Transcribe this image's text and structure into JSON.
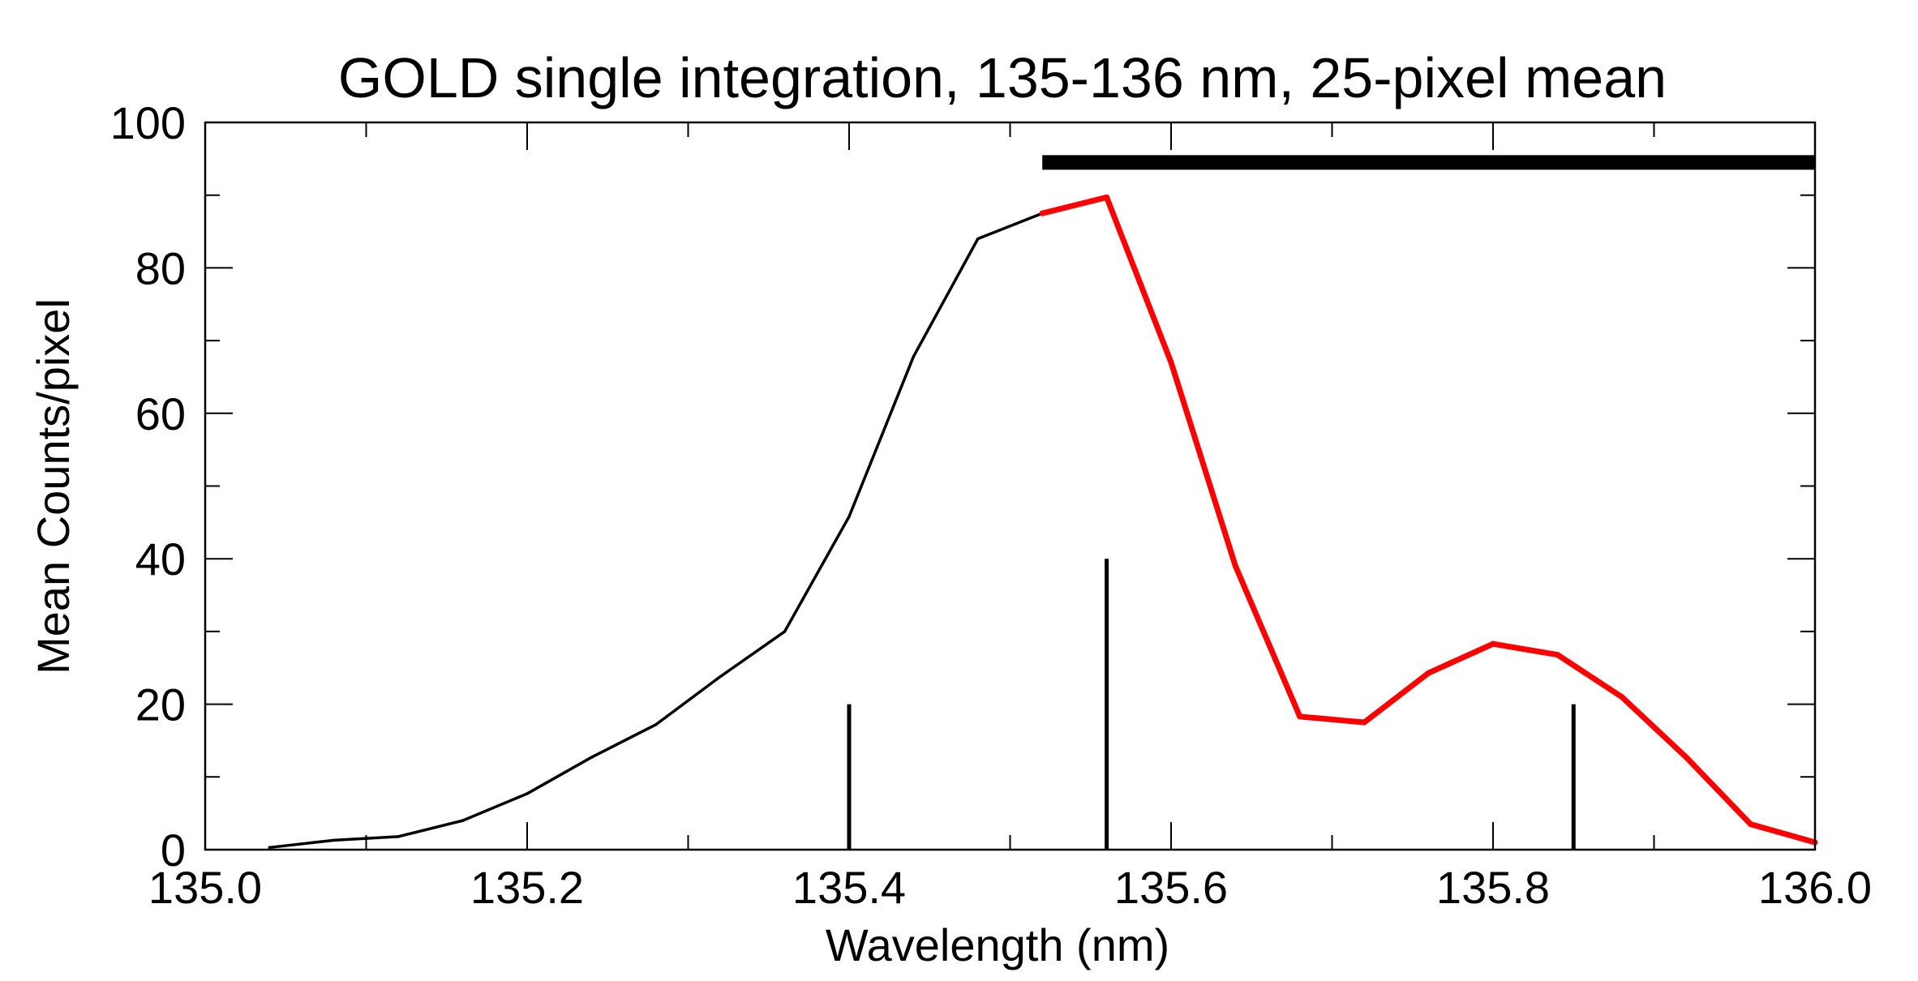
{
  "chart_data": {
    "type": "line",
    "title": "GOLD single integration, 135-136 nm, 25-pixel mean",
    "xlabel": "Wavelength (nm)",
    "ylabel": "Mean Counts/pixel",
    "xlim": [
      135.0,
      136.0
    ],
    "ylim": [
      0,
      100
    ],
    "x_ticks": [
      "135.0",
      "135.2",
      "135.4",
      "135.6",
      "135.8",
      "136.0"
    ],
    "x_tick_values": [
      135.0,
      135.2,
      135.4,
      135.6,
      135.8,
      136.0
    ],
    "y_ticks": [
      "0",
      "20",
      "40",
      "60",
      "80",
      "100"
    ],
    "y_tick_values": [
      0,
      20,
      40,
      60,
      80,
      100
    ],
    "x_minor_tick_values": [
      135.1,
      135.3,
      135.5,
      135.7,
      135.9
    ],
    "y_minor_tick_values": [
      10,
      30,
      50,
      70,
      90
    ],
    "grid": false,
    "series": [
      {
        "color": "#000000",
        "x": [
          135.04,
          135.08,
          135.12,
          135.16,
          135.2,
          135.24,
          135.28,
          135.32,
          135.36,
          135.4,
          135.44,
          135.48,
          135.52
        ],
        "y": [
          0.3,
          1.3,
          1.8,
          4.0,
          7.7,
          12.7,
          17.2,
          23.8,
          30.0,
          45.8,
          67.8,
          84.0,
          87.5
        ]
      },
      {
        "color": "#ff0000",
        "x": [
          135.52,
          135.56,
          135.6,
          135.64,
          135.68,
          135.72,
          135.76,
          135.8,
          135.84,
          135.88,
          135.92,
          135.96,
          136.0
        ],
        "y": [
          87.5,
          89.7,
          67.0,
          39.0,
          18.3,
          17.5,
          24.3,
          28.3,
          26.8,
          21.0,
          12.7,
          3.5,
          1.0
        ]
      }
    ],
    "vertical_markers": [
      {
        "x": 135.4,
        "height": 20,
        "color": "#000000"
      },
      {
        "x": 135.56,
        "height": 40,
        "color": "#000000"
      },
      {
        "x": 135.85,
        "height": 20,
        "color": "#000000"
      }
    ],
    "horizontal_bar": {
      "x_start": 135.52,
      "x_end": 136.0,
      "y": 94.5,
      "color": "#000000"
    }
  }
}
